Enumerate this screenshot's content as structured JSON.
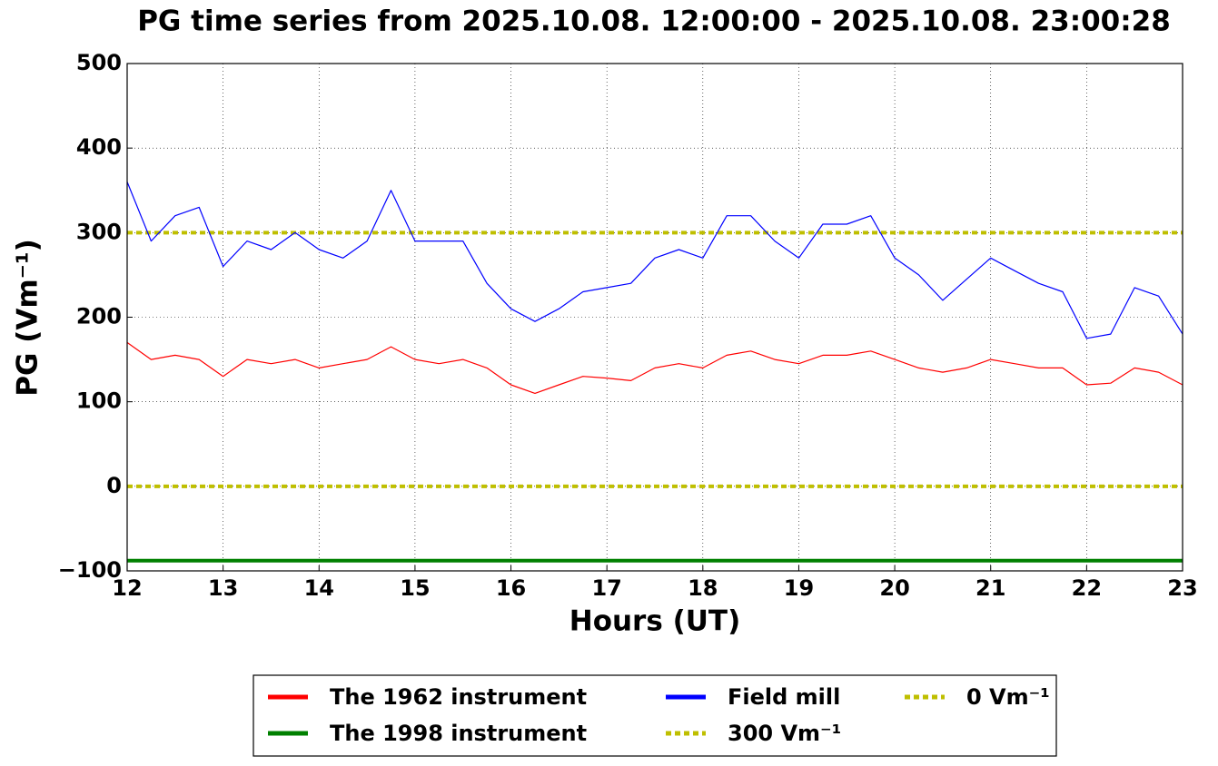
{
  "chart_data": {
    "type": "line",
    "title": "PG time series from 2025.10.08. 12:00:00 - 2025.10.08. 23:00:28",
    "xlabel": "Hours (UT)",
    "ylabel": "PG (Vm⁻¹)",
    "x": [
      12,
      12.25,
      12.5,
      12.75,
      13,
      13.25,
      13.5,
      13.75,
      14,
      14.25,
      14.5,
      14.75,
      15,
      15.25,
      15.5,
      15.75,
      16,
      16.25,
      16.5,
      16.75,
      17,
      17.25,
      17.5,
      17.75,
      18,
      18.25,
      18.5,
      18.75,
      19,
      19.25,
      19.5,
      19.75,
      20,
      20.25,
      20.5,
      20.75,
      21,
      21.25,
      21.5,
      21.75,
      22,
      22.25,
      22.5,
      22.75,
      23
    ],
    "series": [
      {
        "name": "The 1962 instrument",
        "color": "#ff0000",
        "width": 1.2,
        "values": [
          170,
          150,
          155,
          150,
          130,
          150,
          145,
          150,
          140,
          145,
          150,
          165,
          150,
          145,
          150,
          140,
          120,
          110,
          120,
          130,
          128,
          125,
          140,
          145,
          140,
          155,
          160,
          150,
          145,
          155,
          155,
          160,
          150,
          140,
          135,
          140,
          150,
          145,
          140,
          140,
          120,
          122,
          140,
          135,
          120
        ]
      },
      {
        "name": "The 1998 instrument",
        "color": "#008000",
        "width": 4,
        "values": [
          -88,
          -88,
          -88,
          -88,
          -88,
          -88,
          -88,
          -88,
          -88,
          -88,
          -88,
          -88,
          -88,
          -88,
          -88,
          -88,
          -88,
          -88,
          -88,
          -88,
          -88,
          -88,
          -88,
          -88,
          -88,
          -88,
          -88,
          -88,
          -88,
          -88,
          -88,
          -88,
          -88,
          -88,
          -88,
          -88,
          -88,
          -88,
          -88,
          -88,
          -88,
          -88,
          -88,
          -88,
          -88
        ]
      },
      {
        "name": "Field mill",
        "color": "#0000ff",
        "width": 1.2,
        "values": [
          360,
          290,
          320,
          330,
          260,
          290,
          280,
          300,
          280,
          270,
          290,
          350,
          290,
          290,
          290,
          240,
          210,
          195,
          210,
          230,
          235,
          240,
          270,
          280,
          270,
          320,
          320,
          290,
          270,
          310,
          310,
          320,
          270,
          250,
          220,
          245,
          270,
          255,
          240,
          230,
          175,
          180,
          235,
          225,
          180
        ]
      }
    ],
    "hlines": [
      {
        "name": "300 Vm⁻¹",
        "value": 300,
        "color": "#bfbf00"
      },
      {
        "name": "0 Vm⁻¹",
        "value": 0,
        "color": "#bfbf00"
      }
    ],
    "xlim": [
      12,
      23
    ],
    "xticks": [
      12,
      13,
      14,
      15,
      16,
      17,
      18,
      19,
      20,
      21,
      22,
      23
    ],
    "ylim": [
      -100,
      500
    ],
    "yticks": [
      {
        "value": -100,
        "label": "−100"
      },
      0,
      100,
      200,
      300,
      400,
      500
    ],
    "grid": true,
    "legend": "below"
  }
}
